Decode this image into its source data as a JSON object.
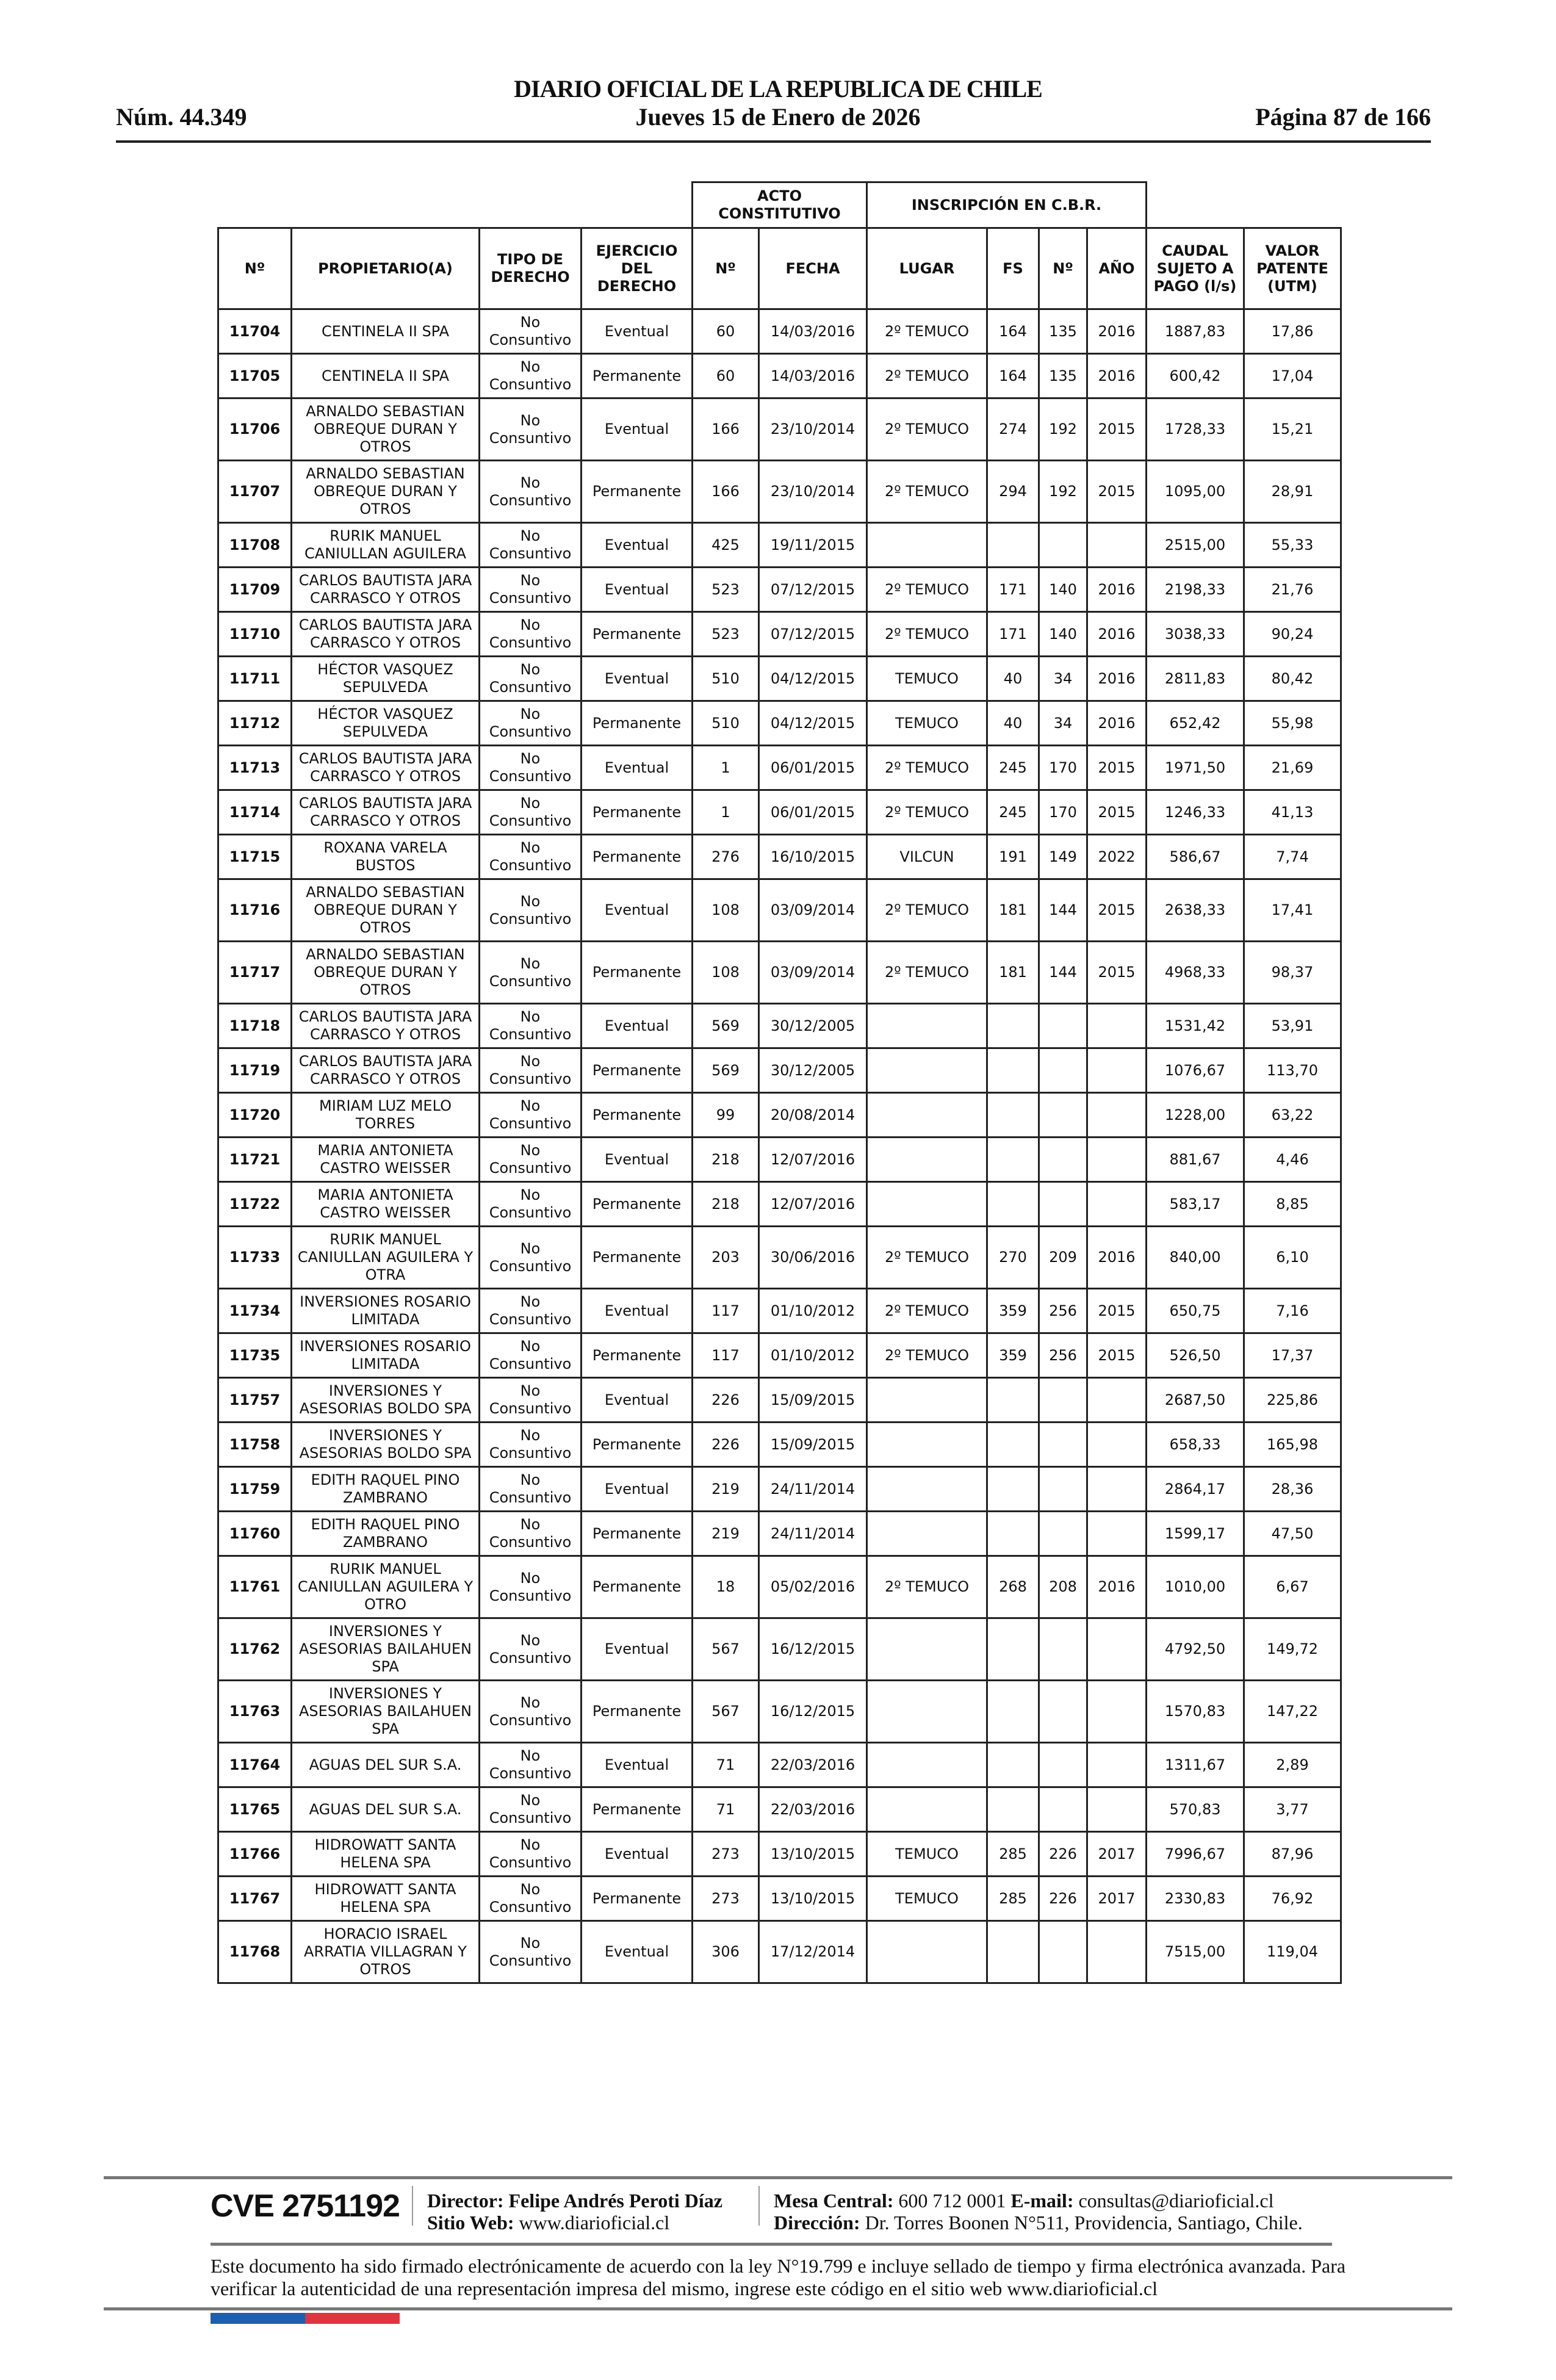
{
  "header": {
    "number": "Núm. 44.349",
    "title": "DIARIO OFICIAL DE LA REPUBLICA DE CHILE",
    "date": "Jueves 15 de Enero de 2026",
    "page": "Página 87 de 166"
  },
  "table": {
    "group_headers": {
      "acto": "ACTO CONSTITUTIVO",
      "inscripcion": "INSCRIPCIÓN EN C.B.R."
    },
    "columns": [
      "Nº",
      "PROPIETARIO(A)",
      "TIPO DE DERECHO",
      "EJERCICIO DEL DERECHO",
      "Nº",
      "FECHA",
      "LUGAR",
      "FS",
      "Nº",
      "AÑO",
      "CAUDAL SUJETO A PAGO (l/s)",
      "VALOR PATENTE (UTM)"
    ],
    "rows": [
      [
        "11704",
        "CENTINELA II SPA",
        "No Consuntivo",
        "Eventual",
        "60",
        "14/03/2016",
        "2º TEMUCO",
        "164",
        "135",
        "2016",
        "1887,83",
        "17,86"
      ],
      [
        "11705",
        "CENTINELA II SPA",
        "No Consuntivo",
        "Permanente",
        "60",
        "14/03/2016",
        "2º TEMUCO",
        "164",
        "135",
        "2016",
        "600,42",
        "17,04"
      ],
      [
        "11706",
        "ARNALDO SEBASTIAN OBREQUE DURAN Y OTROS",
        "No Consuntivo",
        "Eventual",
        "166",
        "23/10/2014",
        "2º TEMUCO",
        "274",
        "192",
        "2015",
        "1728,33",
        "15,21"
      ],
      [
        "11707",
        "ARNALDO SEBASTIAN OBREQUE DURAN Y OTROS",
        "No Consuntivo",
        "Permanente",
        "166",
        "23/10/2014",
        "2º TEMUCO",
        "294",
        "192",
        "2015",
        "1095,00",
        "28,91"
      ],
      [
        "11708",
        "RURIK MANUEL CANIULLAN AGUILERA",
        "No Consuntivo",
        "Eventual",
        "425",
        "19/11/2015",
        "",
        "",
        "",
        "",
        "2515,00",
        "55,33"
      ],
      [
        "11709",
        "CARLOS BAUTISTA JARA CARRASCO Y OTROS",
        "No Consuntivo",
        "Eventual",
        "523",
        "07/12/2015",
        "2º TEMUCO",
        "171",
        "140",
        "2016",
        "2198,33",
        "21,76"
      ],
      [
        "11710",
        "CARLOS BAUTISTA JARA CARRASCO Y OTROS",
        "No Consuntivo",
        "Permanente",
        "523",
        "07/12/2015",
        "2º TEMUCO",
        "171",
        "140",
        "2016",
        "3038,33",
        "90,24"
      ],
      [
        "11711",
        "HÉCTOR VASQUEZ SEPULVEDA",
        "No Consuntivo",
        "Eventual",
        "510",
        "04/12/2015",
        "TEMUCO",
        "40",
        "34",
        "2016",
        "2811,83",
        "80,42"
      ],
      [
        "11712",
        "HÉCTOR VASQUEZ SEPULVEDA",
        "No Consuntivo",
        "Permanente",
        "510",
        "04/12/2015",
        "TEMUCO",
        "40",
        "34",
        "2016",
        "652,42",
        "55,98"
      ],
      [
        "11713",
        "CARLOS BAUTISTA JARA CARRASCO Y OTROS",
        "No Consuntivo",
        "Eventual",
        "1",
        "06/01/2015",
        "2º TEMUCO",
        "245",
        "170",
        "2015",
        "1971,50",
        "21,69"
      ],
      [
        "11714",
        "CARLOS BAUTISTA JARA CARRASCO Y OTROS",
        "No Consuntivo",
        "Permanente",
        "1",
        "06/01/2015",
        "2º TEMUCO",
        "245",
        "170",
        "2015",
        "1246,33",
        "41,13"
      ],
      [
        "11715",
        "ROXANA VARELA BUSTOS",
        "No Consuntivo",
        "Permanente",
        "276",
        "16/10/2015",
        "VILCUN",
        "191",
        "149",
        "2022",
        "586,67",
        "7,74"
      ],
      [
        "11716",
        "ARNALDO SEBASTIAN OBREQUE DURAN Y OTROS",
        "No Consuntivo",
        "Eventual",
        "108",
        "03/09/2014",
        "2º TEMUCO",
        "181",
        "144",
        "2015",
        "2638,33",
        "17,41"
      ],
      [
        "11717",
        "ARNALDO SEBASTIAN OBREQUE DURAN Y OTROS",
        "No Consuntivo",
        "Permanente",
        "108",
        "03/09/2014",
        "2º TEMUCO",
        "181",
        "144",
        "2015",
        "4968,33",
        "98,37"
      ],
      [
        "11718",
        "CARLOS BAUTISTA JARA CARRASCO Y OTROS",
        "No Consuntivo",
        "Eventual",
        "569",
        "30/12/2005",
        "",
        "",
        "",
        "",
        "1531,42",
        "53,91"
      ],
      [
        "11719",
        "CARLOS BAUTISTA JARA CARRASCO Y OTROS",
        "No Consuntivo",
        "Permanente",
        "569",
        "30/12/2005",
        "",
        "",
        "",
        "",
        "1076,67",
        "113,70"
      ],
      [
        "11720",
        "MIRIAM LUZ MELO TORRES",
        "No Consuntivo",
        "Permanente",
        "99",
        "20/08/2014",
        "",
        "",
        "",
        "",
        "1228,00",
        "63,22"
      ],
      [
        "11721",
        "MARIA ANTONIETA CASTRO WEISSER",
        "No Consuntivo",
        "Eventual",
        "218",
        "12/07/2016",
        "",
        "",
        "",
        "",
        "881,67",
        "4,46"
      ],
      [
        "11722",
        "MARIA ANTONIETA CASTRO WEISSER",
        "No Consuntivo",
        "Permanente",
        "218",
        "12/07/2016",
        "",
        "",
        "",
        "",
        "583,17",
        "8,85"
      ],
      [
        "11733",
        "RURIK MANUEL CANIULLAN AGUILERA Y OTRA",
        "No Consuntivo",
        "Permanente",
        "203",
        "30/06/2016",
        "2º TEMUCO",
        "270",
        "209",
        "2016",
        "840,00",
        "6,10"
      ],
      [
        "11734",
        "INVERSIONES ROSARIO LIMITADA",
        "No Consuntivo",
        "Eventual",
        "117",
        "01/10/2012",
        "2º TEMUCO",
        "359",
        "256",
        "2015",
        "650,75",
        "7,16"
      ],
      [
        "11735",
        "INVERSIONES ROSARIO LIMITADA",
        "No Consuntivo",
        "Permanente",
        "117",
        "01/10/2012",
        "2º TEMUCO",
        "359",
        "256",
        "2015",
        "526,50",
        "17,37"
      ],
      [
        "11757",
        "INVERSIONES Y ASESORIAS BOLDO SPA",
        "No Consuntivo",
        "Eventual",
        "226",
        "15/09/2015",
        "",
        "",
        "",
        "",
        "2687,50",
        "225,86"
      ],
      [
        "11758",
        "INVERSIONES Y ASESORIAS BOLDO SPA",
        "No Consuntivo",
        "Permanente",
        "226",
        "15/09/2015",
        "",
        "",
        "",
        "",
        "658,33",
        "165,98"
      ],
      [
        "11759",
        "EDITH RAQUEL PINO ZAMBRANO",
        "No Consuntivo",
        "Eventual",
        "219",
        "24/11/2014",
        "",
        "",
        "",
        "",
        "2864,17",
        "28,36"
      ],
      [
        "11760",
        "EDITH RAQUEL PINO ZAMBRANO",
        "No Consuntivo",
        "Permanente",
        "219",
        "24/11/2014",
        "",
        "",
        "",
        "",
        "1599,17",
        "47,50"
      ],
      [
        "11761",
        "RURIK MANUEL CANIULLAN AGUILERA Y OTRO",
        "No Consuntivo",
        "Permanente",
        "18",
        "05/02/2016",
        "2º TEMUCO",
        "268",
        "208",
        "2016",
        "1010,00",
        "6,67"
      ],
      [
        "11762",
        "INVERSIONES Y ASESORIAS BAILAHUEN SPA",
        "No Consuntivo",
        "Eventual",
        "567",
        "16/12/2015",
        "",
        "",
        "",
        "",
        "4792,50",
        "149,72"
      ],
      [
        "11763",
        "INVERSIONES Y ASESORIAS BAILAHUEN SPA",
        "No Consuntivo",
        "Permanente",
        "567",
        "16/12/2015",
        "",
        "",
        "",
        "",
        "1570,83",
        "147,22"
      ],
      [
        "11764",
        "AGUAS DEL SUR S.A.",
        "No Consuntivo",
        "Eventual",
        "71",
        "22/03/2016",
        "",
        "",
        "",
        "",
        "1311,67",
        "2,89"
      ],
      [
        "11765",
        "AGUAS DEL SUR S.A.",
        "No Consuntivo",
        "Permanente",
        "71",
        "22/03/2016",
        "",
        "",
        "",
        "",
        "570,83",
        "3,77"
      ],
      [
        "11766",
        "HIDROWATT SANTA HELENA SPA",
        "No Consuntivo",
        "Eventual",
        "273",
        "13/10/2015",
        "TEMUCO",
        "285",
        "226",
        "2017",
        "7996,67",
        "87,96"
      ],
      [
        "11767",
        "HIDROWATT SANTA HELENA SPA",
        "No Consuntivo",
        "Permanente",
        "273",
        "13/10/2015",
        "TEMUCO",
        "285",
        "226",
        "2017",
        "2330,83",
        "76,92"
      ],
      [
        "11768",
        "HORACIO ISRAEL ARRATIA VILLAGRAN Y OTROS",
        "No Consuntivo",
        "Eventual",
        "306",
        "17/12/2014",
        "",
        "",
        "",
        "",
        "7515,00",
        "119,04"
      ]
    ]
  },
  "footer": {
    "cve": "CVE 2751192",
    "director_label": "Director:",
    "director": "Felipe Andrés Peroti Díaz",
    "web_label": "Sitio Web:",
    "web": "www.diarioficial.cl",
    "phone_label": "Mesa Central:",
    "phone": "600 712 0001",
    "email_label": "E-mail:",
    "email": "consultas@diarioficial.cl",
    "address_label": "Dirección:",
    "address": "Dr. Torres Boonen N°511, Providencia, Santiago, Chile.",
    "disclaimer": "Este documento ha sido firmado electrónicamente de acuerdo con la ley N°19.799 e incluye sellado de tiempo y firma electrónica avanzada. Para verificar la autenticidad de una representación impresa del mismo, ingrese este código en el sitio web www.diarioficial.cl",
    "flag_colors": [
      "#1d5fae",
      "#e23340"
    ]
  }
}
